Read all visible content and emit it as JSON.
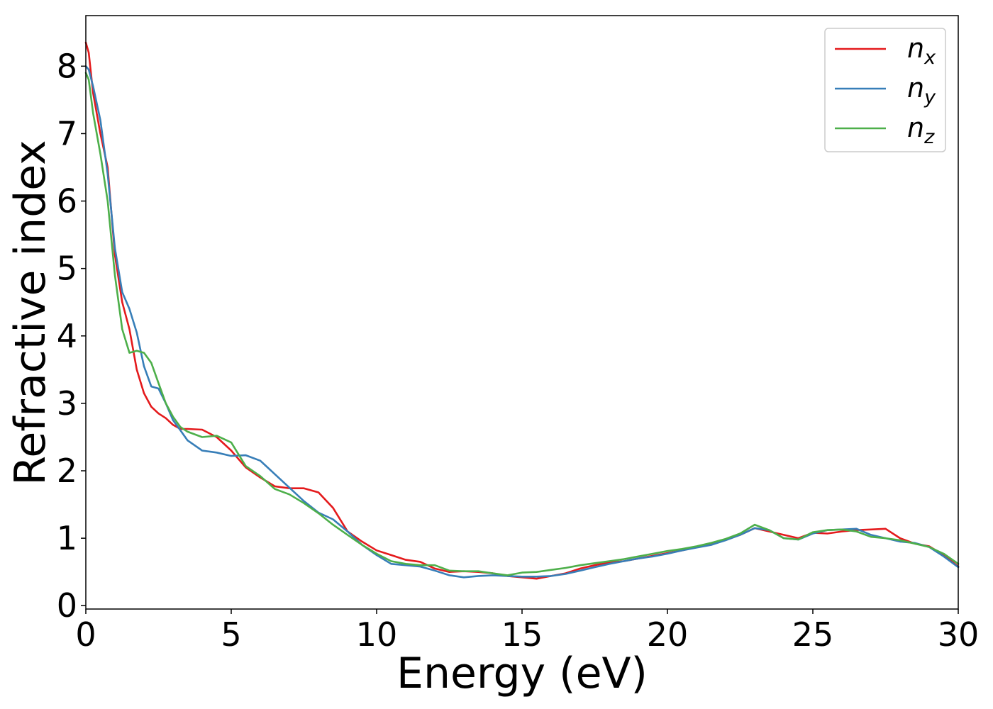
{
  "chart_data": {
    "type": "line",
    "xlabel": "Energy (eV)",
    "ylabel": "Refractive index",
    "xlim": [
      0,
      30
    ],
    "ylim": [
      -0.05,
      8.75
    ],
    "xticks": [
      0,
      5,
      10,
      15,
      20,
      25,
      30
    ],
    "yticks": [
      0,
      1,
      2,
      3,
      4,
      5,
      6,
      7,
      8
    ],
    "grid": false,
    "legend_position": "top-right",
    "series": [
      {
        "name": "n",
        "subscript": "x",
        "color": "#e41a1c",
        "x": [
          0,
          0.1,
          0.25,
          0.5,
          0.75,
          1.0,
          1.25,
          1.5,
          1.75,
          2.0,
          2.25,
          2.5,
          2.75,
          3.0,
          3.25,
          3.5,
          4.0,
          4.5,
          5.0,
          5.5,
          6.0,
          6.5,
          7.0,
          7.5,
          8.0,
          8.5,
          9.0,
          9.5,
          10.0,
          10.5,
          11.0,
          11.5,
          12.0,
          12.5,
          13.0,
          13.5,
          14.0,
          14.5,
          15.0,
          15.5,
          16.0,
          16.5,
          17.0,
          17.5,
          18.0,
          18.5,
          19.0,
          19.5,
          20.0,
          20.5,
          21.0,
          21.5,
          22.0,
          22.5,
          23.0,
          23.5,
          24.0,
          24.5,
          25.0,
          25.5,
          26.0,
          26.5,
          27.0,
          27.5,
          28.0,
          28.5,
          29.0,
          29.5,
          30.0
        ],
        "y": [
          8.35,
          8.2,
          7.6,
          7.0,
          6.5,
          5.2,
          4.5,
          4.1,
          3.5,
          3.15,
          2.95,
          2.85,
          2.78,
          2.68,
          2.62,
          2.62,
          2.61,
          2.5,
          2.3,
          2.05,
          1.9,
          1.77,
          1.74,
          1.74,
          1.68,
          1.45,
          1.1,
          0.95,
          0.82,
          0.75,
          0.68,
          0.65,
          0.55,
          0.5,
          0.51,
          0.5,
          0.48,
          0.44,
          0.42,
          0.4,
          0.44,
          0.48,
          0.55,
          0.6,
          0.64,
          0.66,
          0.7,
          0.74,
          0.78,
          0.82,
          0.87,
          0.92,
          0.98,
          1.05,
          1.15,
          1.1,
          1.05,
          1.0,
          1.08,
          1.07,
          1.1,
          1.12,
          1.13,
          1.14,
          1.0,
          0.92,
          0.88,
          0.75,
          0.58
        ]
      },
      {
        "name": "n",
        "subscript": "y",
        "color": "#377eb8",
        "x": [
          0,
          0.1,
          0.25,
          0.5,
          0.75,
          1.0,
          1.25,
          1.5,
          1.75,
          2.0,
          2.25,
          2.5,
          2.75,
          3.0,
          3.25,
          3.5,
          4.0,
          4.5,
          5.0,
          5.5,
          6.0,
          6.5,
          7.0,
          7.5,
          8.0,
          8.5,
          9.0,
          9.5,
          10.0,
          10.5,
          11.0,
          11.5,
          12.0,
          12.5,
          13.0,
          13.5,
          14.0,
          14.5,
          15.0,
          15.5,
          16.0,
          16.5,
          17.0,
          17.5,
          18.0,
          18.5,
          19.0,
          19.5,
          20.0,
          20.5,
          21.0,
          21.5,
          22.0,
          22.5,
          23.0,
          23.5,
          24.0,
          24.5,
          25.0,
          25.5,
          26.0,
          26.5,
          27.0,
          27.5,
          28.0,
          28.5,
          29.0,
          29.5,
          30.0
        ],
        "y": [
          8.0,
          7.95,
          7.7,
          7.2,
          6.4,
          5.3,
          4.65,
          4.4,
          4.05,
          3.55,
          3.25,
          3.22,
          3.0,
          2.75,
          2.6,
          2.45,
          2.3,
          2.27,
          2.22,
          2.23,
          2.15,
          1.95,
          1.75,
          1.55,
          1.38,
          1.28,
          1.1,
          0.9,
          0.75,
          0.62,
          0.6,
          0.58,
          0.52,
          0.45,
          0.42,
          0.44,
          0.45,
          0.44,
          0.43,
          0.43,
          0.44,
          0.47,
          0.52,
          0.57,
          0.62,
          0.66,
          0.7,
          0.73,
          0.77,
          0.82,
          0.86,
          0.9,
          0.97,
          1.05,
          1.15,
          1.12,
          1.0,
          0.98,
          1.07,
          1.12,
          1.13,
          1.14,
          1.05,
          1.0,
          0.95,
          0.93,
          0.87,
          0.73,
          0.57
        ]
      },
      {
        "name": "n",
        "subscript": "z",
        "color": "#4daf4a",
        "x": [
          0,
          0.1,
          0.25,
          0.5,
          0.75,
          1.0,
          1.25,
          1.5,
          1.75,
          2.0,
          2.25,
          2.5,
          2.75,
          3.0,
          3.25,
          3.5,
          4.0,
          4.5,
          5.0,
          5.5,
          6.0,
          6.5,
          7.0,
          7.5,
          8.0,
          8.5,
          9.0,
          9.5,
          10.0,
          10.5,
          11.0,
          11.5,
          12.0,
          12.5,
          13.0,
          13.5,
          14.0,
          14.5,
          15.0,
          15.5,
          16.0,
          16.5,
          17.0,
          17.5,
          18.0,
          18.5,
          19.0,
          19.5,
          20.0,
          20.5,
          21.0,
          21.5,
          22.0,
          22.5,
          23.0,
          23.5,
          24.0,
          24.5,
          25.0,
          25.5,
          26.0,
          26.5,
          27.0,
          27.5,
          28.0,
          28.5,
          29.0,
          29.5,
          30.0
        ],
        "y": [
          7.9,
          7.8,
          7.3,
          6.7,
          6.0,
          4.9,
          4.1,
          3.75,
          3.78,
          3.75,
          3.6,
          3.3,
          3.0,
          2.8,
          2.65,
          2.58,
          2.5,
          2.52,
          2.42,
          2.07,
          1.92,
          1.73,
          1.65,
          1.52,
          1.37,
          1.2,
          1.05,
          0.9,
          0.77,
          0.66,
          0.62,
          0.6,
          0.6,
          0.52,
          0.51,
          0.51,
          0.48,
          0.45,
          0.49,
          0.5,
          0.53,
          0.56,
          0.6,
          0.63,
          0.66,
          0.69,
          0.73,
          0.77,
          0.81,
          0.84,
          0.88,
          0.93,
          0.99,
          1.07,
          1.2,
          1.12,
          1.0,
          0.98,
          1.09,
          1.12,
          1.13,
          1.1,
          1.02,
          1.0,
          0.97,
          0.92,
          0.87,
          0.77,
          0.62
        ]
      }
    ]
  }
}
